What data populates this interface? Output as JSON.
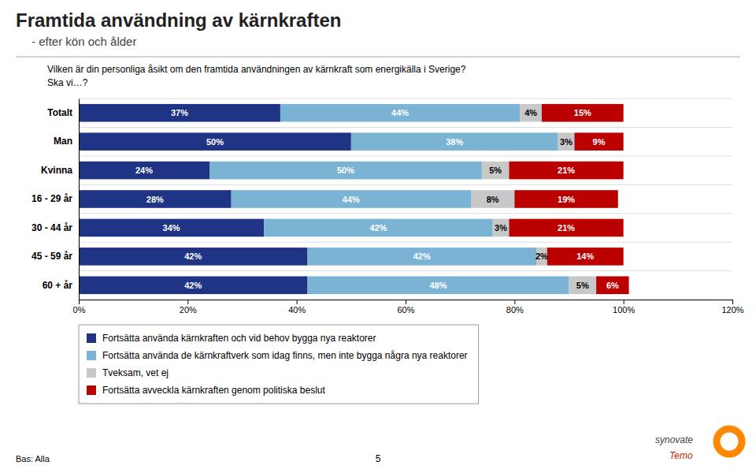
{
  "chart_data": {
    "type": "bar",
    "orientation": "horizontal",
    "stacked": true,
    "data_labels": true,
    "grid": false,
    "legend": "bottom",
    "title": "Framtida användning av kärnkraften",
    "subtitle": "- efter kön och ålder",
    "annotations": [
      "Vilken är din personliga åsikt om den framtida användningen av kärnkraft som energikälla i Sverige?",
      "Ska vi…?",
      "Bas: Alla",
      "5",
      "synovate",
      "Temo"
    ],
    "categories": [
      "Totalt",
      "Man",
      "Kvinna",
      "16 - 29 år",
      "30 - 44 år",
      "45 - 59 år",
      "60 + år"
    ],
    "series": [
      {
        "name": "Fortsätta använda kärnkraften och vid behov bygga nya reaktorer",
        "color": "#1F3484",
        "values": [
          37,
          50,
          24,
          28,
          34,
          42,
          42
        ],
        "value_labels": [
          "37%",
          "50%",
          "24%",
          "28%",
          "34%",
          "42%",
          "42%"
        ]
      },
      {
        "name": "Fortsätta använda de kärnkraftverk som idag finns, men inte bygga några nya reaktorer",
        "color": "#7BB3D4",
        "values": [
          44,
          38,
          50,
          44,
          42,
          42,
          48
        ],
        "value_labels": [
          "44%",
          "38%",
          "50%",
          "44%",
          "42%",
          "42%",
          "48%"
        ]
      },
      {
        "name": "Tveksam, vet ej",
        "color": "#C8C8C8",
        "values": [
          4,
          3,
          5,
          8,
          3,
          2,
          5
        ],
        "value_labels": [
          "4%",
          "3%",
          "5%",
          "8%",
          "3%",
          "2%",
          "5%"
        ]
      },
      {
        "name": "Fortsätta avveckla kärnkraften genom politiska beslut",
        "color": "#BB0000",
        "values": [
          15,
          9,
          21,
          19,
          21,
          14,
          6
        ],
        "value_labels": [
          "15%",
          "9%",
          "21%",
          "19%",
          "21%",
          "14%",
          "6%"
        ]
      }
    ],
    "xlim": [
      0,
      120
    ],
    "xticks": [
      {
        "value": 0,
        "label": "0%"
      },
      {
        "value": 20,
        "label": "20%"
      },
      {
        "value": 40,
        "label": "40%"
      },
      {
        "value": 60,
        "label": "60%"
      },
      {
        "value": 80,
        "label": "80%"
      },
      {
        "value": 100,
        "label": "100%"
      },
      {
        "value": 120,
        "label": "120%"
      }
    ]
  }
}
